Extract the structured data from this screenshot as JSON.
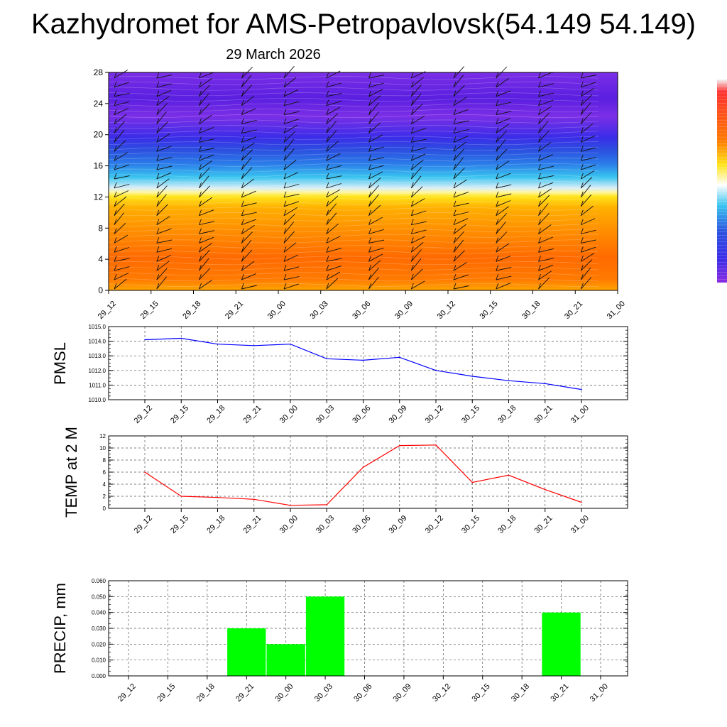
{
  "title": "Kazhydromet for AMS-Petropavlovsk(54.149 54.149)",
  "subtitle": "29 March 2026",
  "chart_data": [
    {
      "type": "heatmap",
      "name": "cross-section",
      "x_categories": [
        "29_12",
        "29_15",
        "29_18",
        "29_21",
        "30_00",
        "30_03",
        "30_06",
        "30_09",
        "30_12",
        "30_15",
        "30_18",
        "30_21",
        "31_00"
      ],
      "yticks": [
        0,
        4,
        8,
        12,
        16,
        20,
        24,
        28
      ],
      "ylim": [
        0,
        28
      ],
      "overlay": "wind barbs",
      "colorbar": [
        "#7b2ee6",
        "#5a1fe0",
        "#3a2de8",
        "#2b7de9",
        "#39c4ef",
        "#ffffff",
        "#ffe41a",
        "#ff9c00",
        "#ff6a00",
        "#ff5500"
      ]
    },
    {
      "type": "line",
      "ylabel": "PMSL",
      "categories": [
        "29_12",
        "29_15",
        "29_18",
        "29_21",
        "30_00",
        "30_03",
        "30_06",
        "30_09",
        "30_12",
        "30_15",
        "30_18",
        "30_21",
        "31_00"
      ],
      "values": [
        1014.1,
        1014.2,
        1013.8,
        1013.7,
        1013.8,
        1012.8,
        1012.7,
        1012.9,
        1012.0,
        1011.6,
        1011.3,
        1011.1,
        1010.7
      ],
      "ylim": [
        1010,
        1015
      ],
      "yticks": [
        "1010.0",
        "1011.0",
        "1012.0",
        "1013.0",
        "1014.0",
        "1015.0"
      ],
      "color": "#0000ff"
    },
    {
      "type": "line",
      "ylabel": "TEMP at 2 M",
      "categories": [
        "29_12",
        "29_15",
        "29_18",
        "29_21",
        "30_00",
        "30_03",
        "30_06",
        "30_09",
        "30_12",
        "30_15",
        "30_18",
        "30_21",
        "31_00"
      ],
      "values": [
        6.0,
        2.0,
        1.8,
        1.5,
        0.5,
        0.6,
        6.8,
        10.4,
        10.5,
        4.3,
        5.5,
        3.1,
        1.0
      ],
      "ylim": [
        0,
        12
      ],
      "yticks": [
        "0",
        "2",
        "4",
        "6",
        "8",
        "10",
        "12"
      ],
      "color": "#ff0000"
    },
    {
      "type": "bar",
      "ylabel": "PRECIP, mm",
      "categories": [
        "29_12",
        "29_15",
        "29_18",
        "29_21",
        "30_00",
        "30_03",
        "30_06",
        "30_09",
        "30_12",
        "30_15",
        "30_18",
        "30_21",
        "31_00"
      ],
      "values": [
        0,
        0,
        0,
        0.03,
        0.02,
        0.05,
        0,
        0,
        0,
        0,
        0,
        0.04,
        0
      ],
      "ylim": [
        0,
        0.06
      ],
      "yticks": [
        "0.000",
        "0.010",
        "0.020",
        "0.030",
        "0.040",
        "0.050",
        "0.060"
      ],
      "color": "#00ff00"
    }
  ]
}
